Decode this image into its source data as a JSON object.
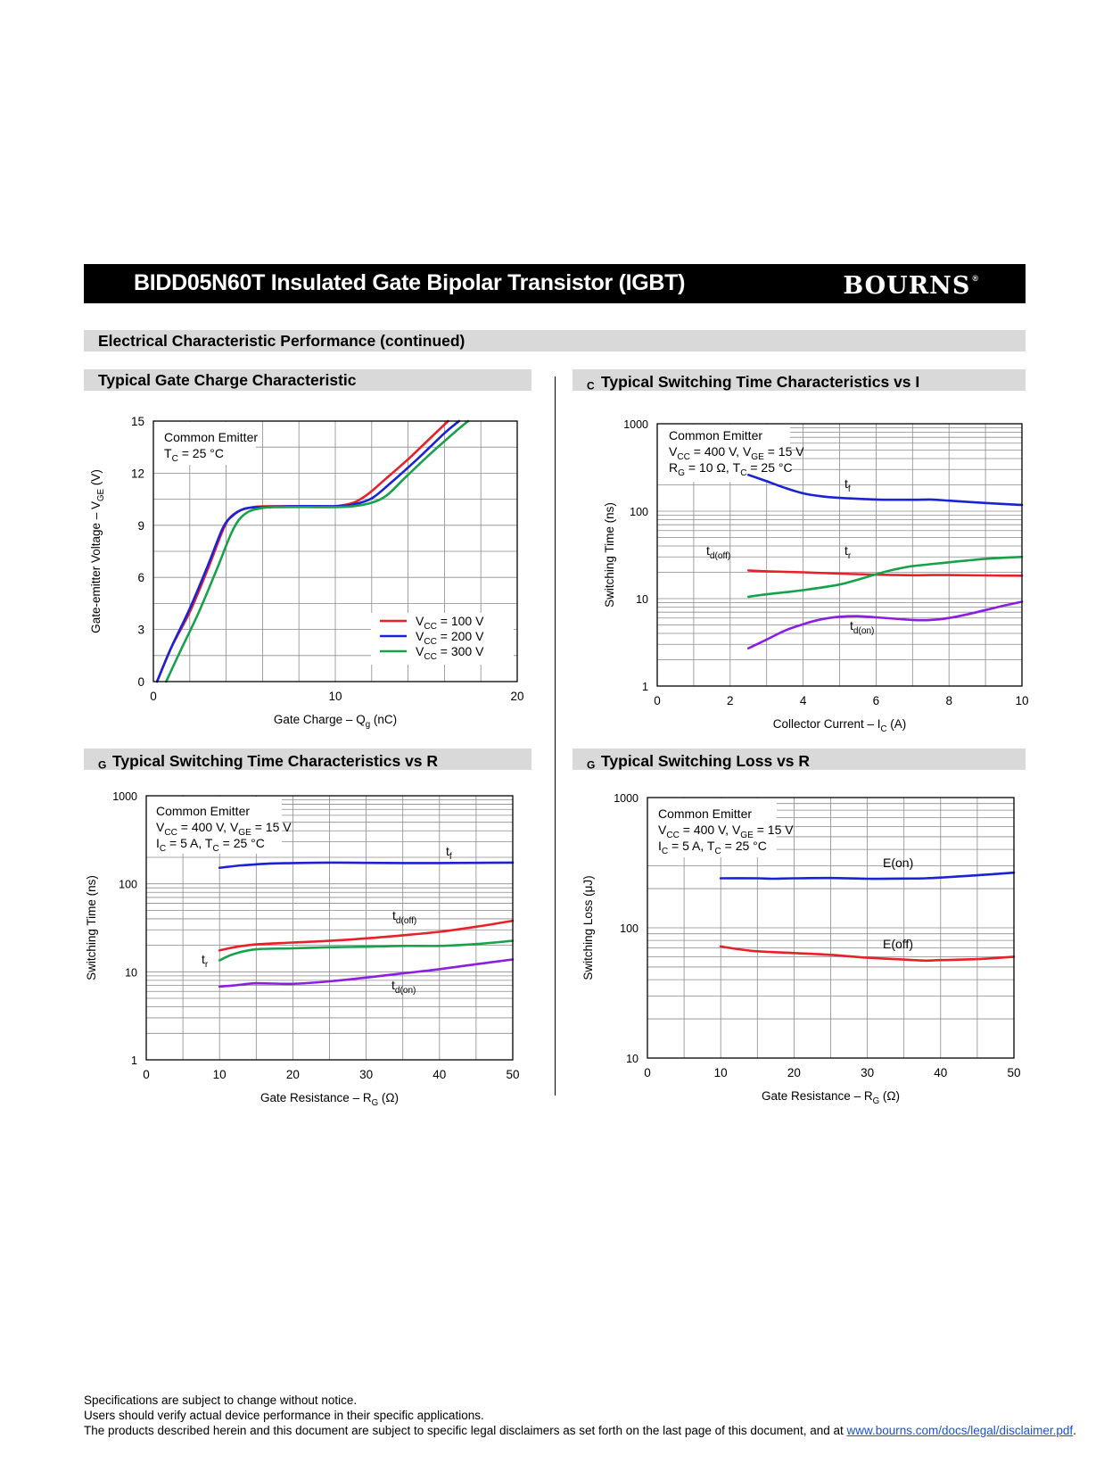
{
  "header": {
    "title": "BIDD05N60T Insulated Gate Bipolar Transistor (IGBT)",
    "logo": "BOURNS",
    "logo_mark": "®"
  },
  "section_title": "Electrical Characteristic Performance (continued)",
  "chart_data": [
    {
      "type": "line",
      "title": "Typical Gate Charge Characteristic",
      "xlabel": "Gate Charge – Qg (nC)",
      "ylabel": "Gate-emitter Voltage – VGE (V)",
      "xlim": [
        0,
        20
      ],
      "ylim": [
        0,
        15
      ],
      "x_ticks": [
        0,
        10,
        20
      ],
      "y_ticks": [
        0,
        3,
        6,
        9,
        12,
        15
      ],
      "grid": true,
      "legend": "bottom-right",
      "conditions": [
        "Common Emitter",
        "TC = 25 °C"
      ],
      "series": [
        {
          "name": "VCC = 100 V",
          "color": "#e8202a",
          "points": [
            [
              0.2,
              0
            ],
            [
              1,
              2
            ],
            [
              2,
              4
            ],
            [
              3,
              6.5
            ],
            [
              3.9,
              8.9
            ],
            [
              4.5,
              9.7
            ],
            [
              5.5,
              10.05
            ],
            [
              7,
              10.1
            ],
            [
              9,
              10.1
            ],
            [
              10,
              10.1
            ],
            [
              11,
              10.3
            ],
            [
              11.8,
              10.8
            ],
            [
              12.8,
              11.7
            ],
            [
              14,
              12.8
            ],
            [
              15.2,
              14
            ],
            [
              16.2,
              15
            ]
          ]
        },
        {
          "name": "VCC = 200 V",
          "color": "#1a22d6",
          "points": [
            [
              0.2,
              0
            ],
            [
              1,
              2
            ],
            [
              2,
              4.2
            ],
            [
              3,
              6.7
            ],
            [
              3.8,
              8.8
            ],
            [
              4.3,
              9.5
            ],
            [
              5,
              9.95
            ],
            [
              6,
              10.05
            ],
            [
              8,
              10.1
            ],
            [
              10,
              10.1
            ],
            [
              11,
              10.2
            ],
            [
              12,
              10.55
            ],
            [
              13,
              11.4
            ],
            [
              14.5,
              12.8
            ],
            [
              16,
              14.3
            ],
            [
              16.8,
              15
            ]
          ]
        },
        {
          "name": "VCC = 300 V",
          "color": "#17a24a",
          "points": [
            [
              0.7,
              0
            ],
            [
              1.5,
              1.8
            ],
            [
              2.5,
              4
            ],
            [
              3.5,
              6.5
            ],
            [
              4.4,
              8.8
            ],
            [
              5.1,
              9.7
            ],
            [
              6,
              10
            ],
            [
              7,
              10.05
            ],
            [
              9,
              10.05
            ],
            [
              10,
              10.05
            ],
            [
              11,
              10.1
            ],
            [
              12,
              10.3
            ],
            [
              12.8,
              10.7
            ],
            [
              13.8,
              11.7
            ],
            [
              15,
              12.9
            ],
            [
              16.5,
              14.3
            ],
            [
              17.3,
              15
            ]
          ]
        }
      ],
      "units_note": "(V)"
    },
    {
      "type": "line",
      "title": "Typical Switching Time Characteristics vs IC",
      "xlabel": "Collector Current – IC (A)",
      "ylabel": "Switching Time (ns)",
      "scale_y": "log",
      "xlim": [
        0,
        10
      ],
      "ylim": [
        1,
        1000
      ],
      "x_ticks": [
        0,
        2,
        4,
        6,
        8,
        10
      ],
      "y_ticks": [
        1,
        10,
        100,
        1000
      ],
      "grid": true,
      "conditions": [
        "Common Emitter",
        "VCC = 400 V, VGE = 15 V",
        "RG = 10 Ω, TC = 25 °C"
      ],
      "series": [
        {
          "name": "tf",
          "color": "#1a22d6",
          "points": [
            [
              2.5,
              260
            ],
            [
              3,
              220
            ],
            [
              3.5,
              185
            ],
            [
              4,
              160
            ],
            [
              4.5,
              148
            ],
            [
              5,
              142
            ],
            [
              6,
              136
            ],
            [
              7,
              135
            ],
            [
              7.5,
              136
            ],
            [
              8,
              132
            ],
            [
              9,
              124
            ],
            [
              10,
              118
            ]
          ]
        },
        {
          "name": "td(off)",
          "color": "#e8202a",
          "points": [
            [
              2.5,
              21
            ],
            [
              3,
              20.5
            ],
            [
              4,
              20
            ],
            [
              5,
              19.3
            ],
            [
              6,
              18.8
            ],
            [
              7,
              18.5
            ],
            [
              7.5,
              18.6
            ],
            [
              8,
              18.6
            ],
            [
              9,
              18.4
            ],
            [
              10,
              18.3
            ]
          ]
        },
        {
          "name": "tr",
          "color": "#17a24a",
          "points": [
            [
              2.5,
              10.5
            ],
            [
              3,
              11.2
            ],
            [
              4,
              12.5
            ],
            [
              5,
              14.5
            ],
            [
              5.5,
              16.5
            ],
            [
              6,
              19
            ],
            [
              6.5,
              21.5
            ],
            [
              7,
              23.5
            ],
            [
              8,
              26
            ],
            [
              9,
              28.5
            ],
            [
              10,
              30
            ]
          ]
        },
        {
          "name": "td(on)",
          "color": "#8b1ee0",
          "points": [
            [
              2.5,
              2.7
            ],
            [
              3,
              3.4
            ],
            [
              3.5,
              4.3
            ],
            [
              4,
              5.1
            ],
            [
              4.5,
              5.8
            ],
            [
              5,
              6.2
            ],
            [
              5.5,
              6.3
            ],
            [
              6,
              6.1
            ],
            [
              6.5,
              5.9
            ],
            [
              7,
              5.7
            ],
            [
              7.5,
              5.7
            ],
            [
              8,
              6
            ],
            [
              8.5,
              6.6
            ],
            [
              9,
              7.4
            ],
            [
              9.5,
              8.3
            ],
            [
              10,
              9.2
            ]
          ]
        }
      ]
    },
    {
      "type": "line",
      "title": "Typical Switching Time Characteristics vs RG",
      "xlabel": "Gate Resistance – RG (Ω)",
      "ylabel": "Switching Time (ns)",
      "scale_y": "log",
      "xlim": [
        0,
        50
      ],
      "ylim": [
        1,
        1000
      ],
      "x_ticks": [
        0,
        10,
        20,
        30,
        40,
        50
      ],
      "y_ticks": [
        1,
        10,
        100,
        1000
      ],
      "grid": true,
      "conditions": [
        "Common Emitter",
        "VCC = 400 V, VGE = 15 V",
        "IC = 5 A, TC = 25 °C"
      ],
      "series": [
        {
          "name": "tf",
          "color": "#1a22d6",
          "points": [
            [
              10,
              152
            ],
            [
              13,
              162
            ],
            [
              17,
              170
            ],
            [
              20,
              172
            ],
            [
              25,
              174
            ],
            [
              30,
              173
            ],
            [
              35,
              172
            ],
            [
              40,
              172
            ],
            [
              45,
              173
            ],
            [
              50,
              174
            ]
          ]
        },
        {
          "name": "td(off)",
          "color": "#e8202a",
          "points": [
            [
              10,
              17.5
            ],
            [
              12,
              19
            ],
            [
              15,
              20.5
            ],
            [
              20,
              21.5
            ],
            [
              25,
              22.5
            ],
            [
              30,
              24
            ],
            [
              35,
              26
            ],
            [
              40,
              28.5
            ],
            [
              45,
              32.5
            ],
            [
              50,
              38
            ]
          ]
        },
        {
          "name": "tr",
          "color": "#17a24a",
          "points": [
            [
              10,
              13.5
            ],
            [
              12,
              16
            ],
            [
              15,
              18
            ],
            [
              20,
              18.5
            ],
            [
              25,
              19
            ],
            [
              30,
              19.3
            ],
            [
              35,
              19.7
            ],
            [
              40,
              19.7
            ],
            [
              45,
              20.7
            ],
            [
              50,
              22.5
            ]
          ]
        },
        {
          "name": "td(on)",
          "color": "#8b1ee0",
          "points": [
            [
              10,
              6.8
            ],
            [
              12,
              7
            ],
            [
              15,
              7.4
            ],
            [
              20,
              7.3
            ],
            [
              25,
              7.8
            ],
            [
              30,
              8.6
            ],
            [
              35,
              9.6
            ],
            [
              40,
              10.7
            ],
            [
              45,
              12.2
            ],
            [
              50,
              13.8
            ]
          ]
        }
      ]
    },
    {
      "type": "line",
      "title": "Typical Switching Loss vs RG",
      "xlabel": "Gate Resistance – RG (Ω)",
      "ylabel": "Switching Loss (μJ)",
      "scale_y": "log",
      "xlim": [
        0,
        50
      ],
      "ylim": [
        10,
        1000
      ],
      "x_ticks": [
        0,
        10,
        20,
        30,
        40,
        50
      ],
      "y_ticks": [
        10,
        100,
        1000
      ],
      "grid": true,
      "conditions": [
        "Common Emitter",
        "VCC = 400 V, VGE = 15 V",
        "IC = 5 A, TC = 25 °C"
      ],
      "series": [
        {
          "name": "E(on)",
          "color": "#1a22d6",
          "points": [
            [
              10,
              240
            ],
            [
              15,
              240
            ],
            [
              17,
              238
            ],
            [
              20,
              240
            ],
            [
              25,
              241
            ],
            [
              30,
              238
            ],
            [
              35,
              239
            ],
            [
              38,
              240
            ],
            [
              40,
              243
            ],
            [
              45,
              253
            ],
            [
              50,
              265
            ]
          ]
        },
        {
          "name": "E(off)",
          "color": "#e8202a",
          "points": [
            [
              10,
              72
            ],
            [
              12,
              69
            ],
            [
              15,
              66
            ],
            [
              20,
              64
            ],
            [
              25,
              62
            ],
            [
              30,
              59
            ],
            [
              35,
              57
            ],
            [
              38,
              56
            ],
            [
              40,
              56.5
            ],
            [
              45,
              57.5
            ],
            [
              50,
              60
            ]
          ]
        }
      ]
    }
  ],
  "charts_text": [
    {
      "section": "Typical Gate Charge Characteristic",
      "xlabel": {
        "main": "Gate Charge – Q",
        "sub": "g",
        "tail": " (nC)"
      },
      "ylabel": {
        "main": "Gate-emitter Voltage – V",
        "sub": "GE",
        "tail": " (V)"
      },
      "conditions": [
        {
          "main": "Common Emitter"
        },
        {
          "main": "T",
          "sub": "C",
          "tail": " = 25 °C"
        }
      ],
      "legend": [
        {
          "main": "V",
          "sub": "CC",
          "tail": " = 100 V"
        },
        {
          "main": "V",
          "sub": "CC",
          "tail": " = 200 V"
        },
        {
          "main": "V",
          "sub": "CC",
          "tail": " = 300 V"
        }
      ]
    },
    {
      "section": {
        "main": "Typical Switching Time Characteristics vs I",
        "sub": "C"
      },
      "xlabel": {
        "main": "Collector Current – I",
        "sub": "C",
        "tail": " (A)"
      },
      "ylabel": {
        "main": "Switching Time (ns)"
      },
      "conditions": [
        {
          "main": "Common Emitter"
        },
        {
          "main": "V",
          "sub": "CC",
          "tail": " = 400 V, V",
          "sub2": "GE",
          "tail2": " = 15 V"
        },
        {
          "main": "R",
          "sub": "G",
          "tail": " = 10 Ω,  T",
          "sub2": "C",
          "tail2": " = 25 °C"
        }
      ],
      "labels": [
        {
          "main": "t",
          "sub": "f"
        },
        {
          "main": "t",
          "sub": "d(off)"
        },
        {
          "main": "t",
          "sub": "r"
        },
        {
          "main": "t",
          "sub": "d(on)"
        }
      ]
    },
    {
      "section": {
        "main": "Typical Switching Time Characteristics vs R",
        "sub": "G"
      },
      "xlabel": {
        "main": "Gate Resistance – R",
        "sub": "G",
        "tail": " (Ω)"
      },
      "ylabel": {
        "main": "Switching Time (ns)"
      },
      "conditions": [
        {
          "main": "Common Emitter"
        },
        {
          "main": "V",
          "sub": "CC",
          "tail": " = 400 V, V",
          "sub2": "GE",
          "tail2": " = 15 V"
        },
        {
          "main": "I",
          "sub": "C",
          "tail": " = 5 A, T",
          "sub2": "C",
          "tail2": " = 25 °C"
        }
      ],
      "labels": [
        {
          "main": "t",
          "sub": "f"
        },
        {
          "main": "t",
          "sub": "d(off)"
        },
        {
          "main": "t",
          "sub": "r"
        },
        {
          "main": "t",
          "sub": "d(on)"
        }
      ]
    },
    {
      "section": {
        "main": "Typical Switching Loss vs R",
        "sub": "G"
      },
      "xlabel": {
        "main": "Gate Resistance – R",
        "sub": "G",
        "tail": " (Ω)"
      },
      "ylabel": {
        "main": "Switching Loss (μJ)"
      },
      "conditions": [
        {
          "main": "Common Emitter"
        },
        {
          "main": "V",
          "sub": "CC",
          "tail": " = 400 V, V",
          "sub2": "GE",
          "tail2": " = 15 V"
        },
        {
          "main": "I",
          "sub": "C",
          "tail": " = 5 A, T",
          "sub2": "C",
          "tail2": " = 25 °C"
        }
      ],
      "labels": [
        {
          "main": "E(on)"
        },
        {
          "main": "E(off)"
        }
      ]
    }
  ],
  "footer": {
    "line1": "Specifications are subject to change without notice.",
    "line2": "Users should verify actual device performance in their specific applications.",
    "line3": "The products described herein and this document are subject to specific legal disclaimers as set forth on the last page of this document, and at ",
    "link": "www.bourns.com/docs/legal/disclaimer.pdf",
    "line3_end": "."
  }
}
